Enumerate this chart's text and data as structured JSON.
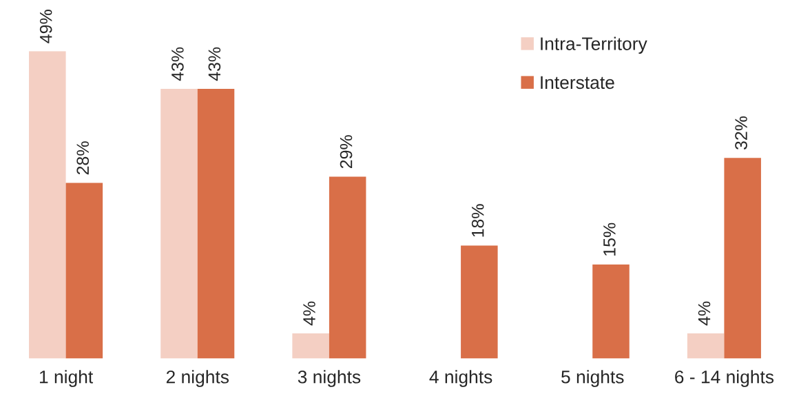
{
  "chart_data": {
    "type": "bar",
    "categories": [
      "1 night",
      "2 nights",
      "3 nights",
      "4 nights",
      "5 nights",
      "6 - 14 nights"
    ],
    "series": [
      {
        "name": "Intra-Territory",
        "color": "#f4cfc3",
        "values": [
          49,
          43,
          4,
          null,
          null,
          4
        ],
        "value_labels": [
          "49%",
          "43%",
          "4%",
          null,
          null,
          "4%"
        ]
      },
      {
        "name": "Interstate",
        "color": "#d96f48",
        "values": [
          28,
          43,
          29,
          18,
          15,
          32
        ],
        "value_labels": [
          "28%",
          "43%",
          "29%",
          "18%",
          "15%",
          "32%"
        ]
      }
    ],
    "legend": "top right",
    "grid": false
  }
}
